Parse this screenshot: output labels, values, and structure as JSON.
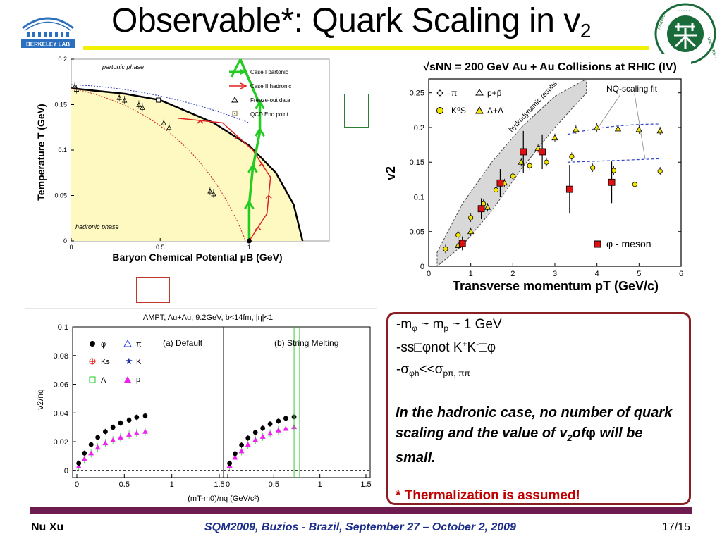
{
  "slide": {
    "title_main": "Observable*: Quark Scaling in v",
    "title_sub": "2",
    "logo_left_text": "BERKELEY LAB",
    "logo_right_text": "PEKING UNIVERSITY",
    "colors": {
      "title_underline": "#f2f200",
      "footer_bar": "#6e1b4f",
      "note_border": "#8a1e22",
      "conference": "#1c2e8c",
      "thermalization": "#c00000"
    }
  },
  "notes": {
    "line1_a": "-m",
    "line1_b": "φ",
    "line1_c": " ~ m",
    "line1_d": "p",
    "line1_e": " ~ 1 GeV",
    "line2_a": "-ss",
    "line2_b": "φnot K",
    "line2_c": "+",
    "line2_d": "K",
    "line2_e": "-",
    "line2_f": "φ",
    "line3_a": "-σ",
    "line3_b": "φh",
    "line3_c": "<<σ",
    "line3_d": "pπ, ππ",
    "italic_a": "In the hadronic case, no number of quark scaling and the value of v",
    "italic_b": "2",
    "italic_c": "of",
    "italic_d": "φ",
    "italic_e": " will be small.",
    "thermalization": "* Thermalization is assumed!"
  },
  "footer": {
    "author": "Nu Xu",
    "conference": "SQM2009, Buzios - Brazil, September 27 – October 2, 2009",
    "page": "17/15"
  },
  "chart_data": [
    {
      "type": "line",
      "title": "",
      "xlabel": "Baryon Chemical Potential μB (GeV)",
      "ylabel": "Temperature T (GeV)",
      "xlim": [
        0,
        1.45
      ],
      "ylim": [
        0,
        0.2
      ],
      "x_ticks": [
        "0",
        "0.5",
        "1"
      ],
      "y_ticks": [
        "0",
        "0.05",
        "0.1",
        "0.15",
        "0.2"
      ],
      "region_labels": [
        "partonic phase",
        "hadronic phase"
      ],
      "legend": [
        "Case I partonic",
        "Case II hadronic",
        "Freeze-out data",
        "QCD End point"
      ],
      "legend_colors": [
        "#22cc22",
        "#e02020",
        "#000000",
        "#8a6d3b"
      ],
      "freezeout_points": [
        [
          0.02,
          0.17
        ],
        [
          0.03,
          0.167
        ],
        [
          0.27,
          0.158
        ],
        [
          0.3,
          0.155
        ],
        [
          0.38,
          0.15
        ],
        [
          0.4,
          0.147
        ],
        [
          0.52,
          0.13
        ],
        [
          0.55,
          0.125
        ],
        [
          0.78,
          0.055
        ],
        [
          0.8,
          0.052
        ]
      ],
      "end_point": [
        0.49,
        0.155
      ],
      "phase_boundary": [
        [
          0,
          0.168
        ],
        [
          0.3,
          0.162
        ],
        [
          0.5,
          0.155
        ],
        [
          0.8,
          0.13
        ],
        [
          1.0,
          0.105
        ],
        [
          1.15,
          0.075
        ],
        [
          1.25,
          0.04
        ],
        [
          1.3,
          0
        ]
      ],
      "case_I": [
        [
          1.0,
          0.0
        ],
        [
          1.0,
          0.04
        ],
        [
          1.02,
          0.08
        ],
        [
          1.06,
          0.12
        ],
        [
          1.06,
          0.15
        ]
      ],
      "case_II": [
        [
          1.0,
          0.0
        ],
        [
          1.1,
          0.03
        ],
        [
          1.12,
          0.07
        ],
        [
          1.02,
          0.1
        ],
        [
          0.85,
          0.13
        ],
        [
          0.6,
          0.135
        ]
      ]
    },
    {
      "type": "scatter",
      "title": "√sNN = 200 GeV Au + Au Collisions at RHIC (IV)",
      "xlabel": "Transverse momentum pT (GeV/c)",
      "ylabel": "v2",
      "xlim": [
        0,
        6
      ],
      "ylim": [
        0,
        0.27
      ],
      "x_ticks": [
        "0",
        "1",
        "2",
        "3",
        "4",
        "5",
        "6"
      ],
      "y_ticks": [
        "0",
        "0.05",
        "0.1",
        "0.15",
        "0.2",
        "0.25"
      ],
      "annotations": [
        "hydrodynamic results",
        "NQ-scaling fit",
        "φ - meson"
      ],
      "legend": [
        "π",
        "p+p̄",
        "K⁰S",
        "Λ+Λ̄"
      ],
      "series": [
        {
          "name": "φ - meson",
          "x": [
            0.8,
            1.25,
            1.7,
            2.25,
            2.7,
            3.35,
            4.35
          ],
          "y": [
            0.033,
            0.083,
            0.12,
            0.165,
            0.165,
            0.111,
            0.121
          ]
        },
        {
          "name": "K⁰S",
          "x": [
            0.4,
            0.7,
            1.0,
            1.3,
            1.6,
            2.0,
            2.4,
            2.8,
            3.4,
            3.9,
            4.4,
            4.9,
            5.5
          ],
          "y": [
            0.025,
            0.045,
            0.07,
            0.09,
            0.11,
            0.13,
            0.145,
            0.15,
            0.158,
            0.142,
            0.138,
            0.118,
            0.137
          ]
        },
        {
          "name": "Λ+Λ̄",
          "x": [
            0.7,
            1.0,
            1.4,
            1.8,
            2.2,
            2.6,
            3.0,
            3.5,
            4.0,
            4.5,
            5.0,
            5.5
          ],
          "y": [
            0.03,
            0.05,
            0.085,
            0.12,
            0.15,
            0.17,
            0.185,
            0.197,
            0.2,
            0.198,
            0.197,
            0.195
          ]
        }
      ]
    },
    {
      "type": "scatter",
      "title": "AMPT, Au+Au, 9.2GeV, b<14fm, |η|<1",
      "panels": [
        "(a) Default",
        "(b) String Melting"
      ],
      "xlabel": "(mT-m0)/nq (GeV/c²)",
      "ylabel": "v2/nq",
      "xlim": [
        0,
        1.5
      ],
      "ylim": [
        -0.005,
        0.1
      ],
      "x_ticks": [
        "0",
        "0.5",
        "1",
        "1.5"
      ],
      "y_ticks": [
        "0",
        "0.02",
        "0.04",
        "0.06",
        "0.08",
        "0.1"
      ],
      "legend": [
        "φ",
        "π",
        "Ks",
        "K",
        "Λ",
        "p"
      ],
      "series": [
        {
          "name": "φ",
          "x": [
            0.02,
            0.08,
            0.15,
            0.22,
            0.3,
            0.38,
            0.46,
            0.55,
            0.63,
            0.72
          ],
          "y": [
            0.005,
            0.012,
            0.018,
            0.023,
            0.027,
            0.03,
            0.033,
            0.035,
            0.037,
            0.038
          ]
        },
        {
          "name": "p",
          "x": [
            0.02,
            0.08,
            0.15,
            0.22,
            0.3,
            0.38,
            0.46,
            0.55,
            0.63,
            0.72
          ],
          "y": [
            0.003,
            0.008,
            0.012,
            0.016,
            0.019,
            0.021,
            0.023,
            0.025,
            0.026,
            0.027
          ]
        }
      ]
    }
  ]
}
